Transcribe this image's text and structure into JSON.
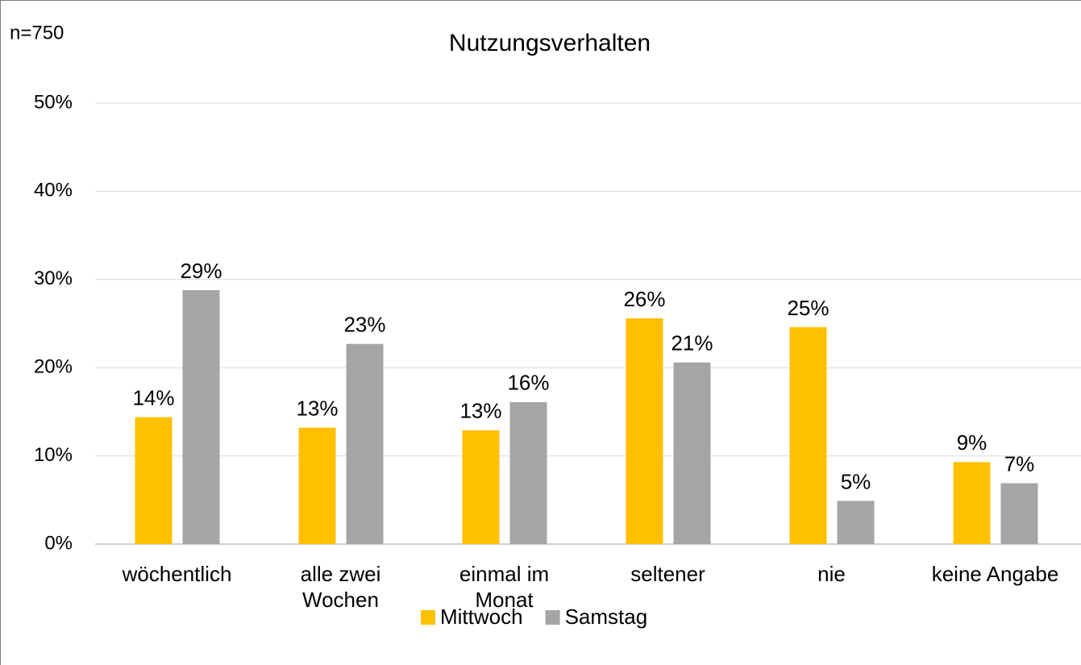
{
  "chart_data": {
    "type": "bar",
    "title": "Nutzungsverhalten",
    "annotation": "n=750",
    "categories": [
      "wöchentlich",
      "alle zwei\nWochen",
      "einmal im\nMonat",
      "seltener",
      "nie",
      "keine Angabe"
    ],
    "series": [
      {
        "name": "Mittwoch",
        "color": "#ffc000",
        "values": [
          14.4,
          13.2,
          12.9,
          25.6,
          24.6,
          9.3
        ],
        "value_labels": [
          "14%",
          "13%",
          "13%",
          "26%",
          "25%",
          "9%"
        ]
      },
      {
        "name": "Samstag",
        "color": "#a5a5a5",
        "values": [
          28.8,
          22.7,
          16.1,
          20.6,
          4.9,
          6.9
        ],
        "value_labels": [
          "29%",
          "23%",
          "16%",
          "21%",
          "5%",
          "7%"
        ]
      }
    ],
    "ylim": [
      0,
      50
    ],
    "yticks": [
      {
        "value": 0,
        "label": "0%"
      },
      {
        "value": 10,
        "label": "10%"
      },
      {
        "value": 20,
        "label": "20%"
      },
      {
        "value": 30,
        "label": "30%"
      },
      {
        "value": 40,
        "label": "40%"
      },
      {
        "value": 50,
        "label": "50%"
      }
    ],
    "grid": true,
    "legend": "bottom"
  }
}
